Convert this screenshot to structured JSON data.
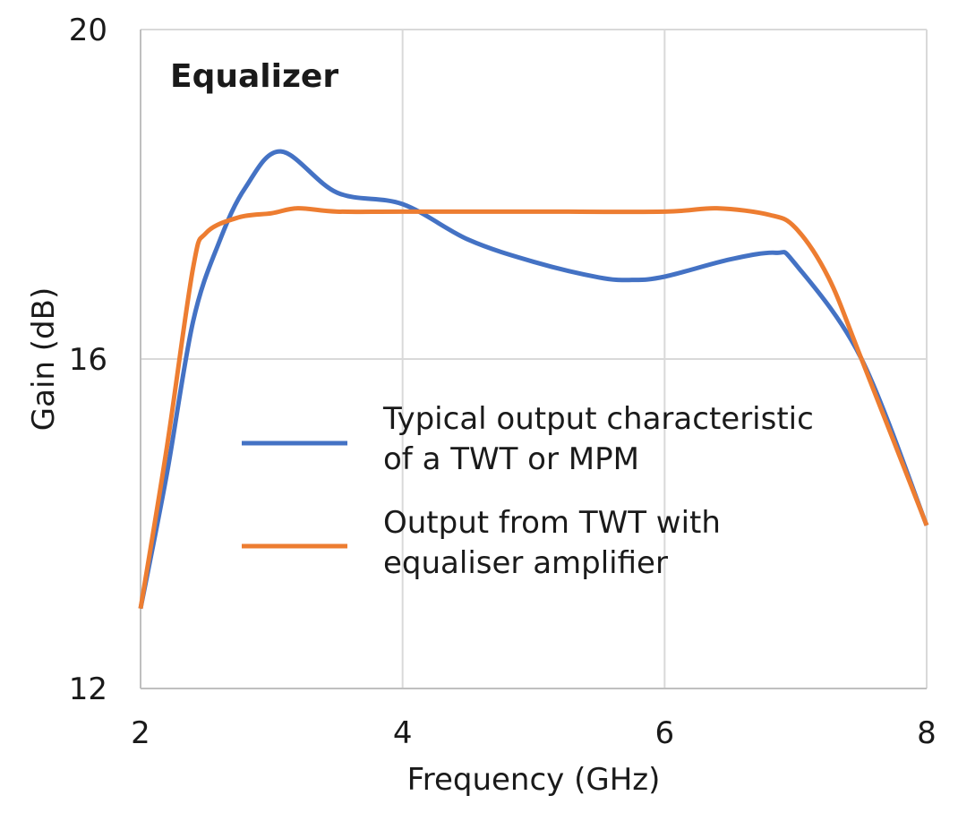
{
  "chart_data": {
    "type": "line",
    "title": "Equalizer",
    "xlabel": "Frequency (GHz)",
    "ylabel": "Gain (dB)",
    "xlim": [
      2,
      8
    ],
    "ylim": [
      12,
      20
    ],
    "xticks": [
      2,
      4,
      6,
      8
    ],
    "yticks": [
      12,
      16,
      20
    ],
    "grid": true,
    "legend_placement": "center",
    "series": [
      {
        "name": "Typical output characteristic of a TWT or MPM",
        "name_lines": [
          "Typical output characteristic",
          "of a TWT or MPM"
        ],
        "color": "#4472C4",
        "x": [
          2,
          2.2,
          2.4,
          2.6,
          2.8,
          3.07,
          3.5,
          4,
          4.5,
          5,
          5.5,
          5.75,
          6,
          6.5,
          6.85,
          7,
          7.5,
          8
        ],
        "y": [
          12.97,
          14.6,
          16.45,
          17.42,
          18.08,
          18.52,
          18.02,
          17.88,
          17.45,
          17.18,
          16.99,
          16.96,
          17.0,
          17.21,
          17.29,
          17.15,
          16.01,
          13.98
        ]
      },
      {
        "name": "Output from TWT with equaliser amplifier",
        "name_lines": [
          "Output from TWT with",
          "equaliser amplifier"
        ],
        "color": "#ED7D31",
        "x": [
          2,
          2.2,
          2.4,
          2.5,
          2.75,
          3,
          3.2,
          3.5,
          4,
          5,
          6,
          6.4,
          6.8,
          7,
          7.25,
          7.5,
          8
        ],
        "y": [
          12.97,
          14.92,
          17.1,
          17.53,
          17.72,
          17.77,
          17.83,
          17.79,
          17.79,
          17.79,
          17.79,
          17.83,
          17.75,
          17.59,
          16.99,
          16.01,
          13.98
        ]
      }
    ]
  }
}
